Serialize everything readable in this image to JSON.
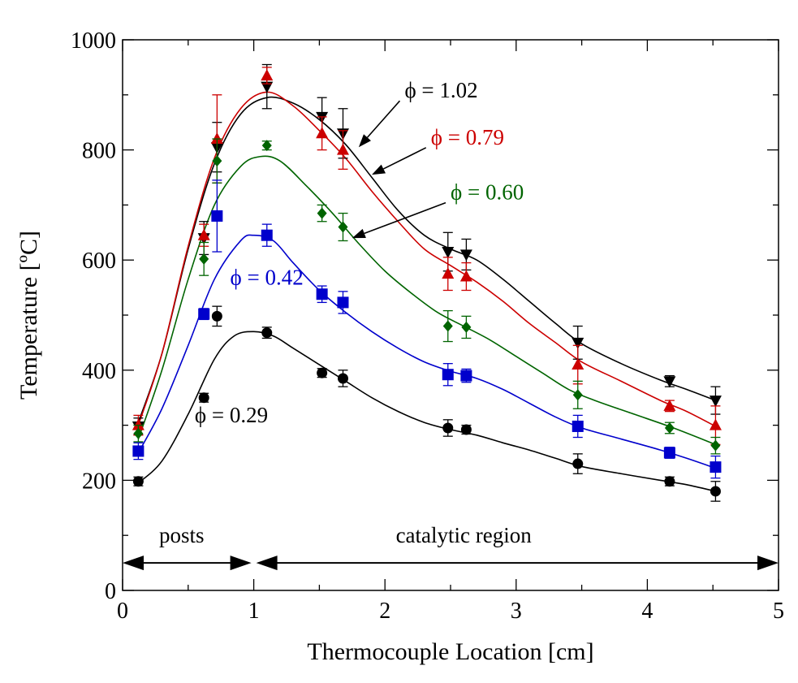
{
  "chart_data": {
    "type": "scatter",
    "xlabel": "Thermocouple Location [cm]",
    "ylabel": "Temperature [ºC]",
    "xlim": [
      0,
      5
    ],
    "ylim": [
      0,
      1000
    ],
    "xticks": [
      "0",
      "1",
      "2",
      "3",
      "4",
      "5"
    ],
    "yticks": [
      "0",
      "200",
      "400",
      "600",
      "800",
      "1000"
    ],
    "grid": false,
    "regions": [
      {
        "label": "posts",
        "from": 0,
        "to": 1.0,
        "y": 50
      },
      {
        "label": "catalytic region",
        "from": 1.0,
        "to": 5.0,
        "y": 50
      }
    ],
    "series": [
      {
        "name": "ϕ = 1.02",
        "color": "#000000",
        "marker": "triangle-down",
        "label_x": 2.15,
        "label_y": 895,
        "arrow_to": [
          1.8,
          805
        ],
        "x": [
          0.12,
          0.62,
          0.72,
          1.1,
          1.52,
          1.68,
          2.48,
          2.62,
          3.47,
          4.17,
          4.52
        ],
        "y": [
          298,
          640,
          805,
          915,
          860,
          830,
          615,
          610,
          450,
          380,
          345
        ],
        "err": [
          15,
          30,
          45,
          40,
          35,
          45,
          35,
          28,
          30,
          10,
          25
        ],
        "fit": [
          [
            0.12,
            305
          ],
          [
            0.3,
            430
          ],
          [
            0.5,
            620
          ],
          [
            0.7,
            775
          ],
          [
            0.9,
            865
          ],
          [
            1.1,
            895
          ],
          [
            1.3,
            885
          ],
          [
            1.5,
            855
          ],
          [
            1.7,
            810
          ],
          [
            1.9,
            750
          ],
          [
            2.1,
            690
          ],
          [
            2.3,
            645
          ],
          [
            2.5,
            620
          ],
          [
            2.7,
            600
          ],
          [
            2.9,
            565
          ],
          [
            3.1,
            525
          ],
          [
            3.3,
            485
          ],
          [
            3.5,
            448
          ],
          [
            3.8,
            412
          ],
          [
            4.1,
            382
          ],
          [
            4.3,
            365
          ],
          [
            4.52,
            345
          ]
        ]
      },
      {
        "name": "ϕ = 0.79",
        "color": "#cc0000",
        "marker": "triangle-up",
        "label_x": 2.35,
        "label_y": 810,
        "arrow_to": [
          1.9,
          755
        ],
        "x": [
          0.12,
          0.62,
          0.72,
          1.1,
          1.52,
          1.68,
          2.48,
          2.62,
          3.47,
          4.17,
          4.52
        ],
        "y": [
          300,
          645,
          820,
          935,
          830,
          800,
          575,
          570,
          410,
          335,
          300
        ],
        "err": [
          18,
          20,
          80,
          15,
          30,
          35,
          30,
          25,
          35,
          10,
          35
        ],
        "fit": [
          [
            0.12,
            300
          ],
          [
            0.3,
            430
          ],
          [
            0.5,
            625
          ],
          [
            0.7,
            785
          ],
          [
            0.9,
            875
          ],
          [
            1.1,
            905
          ],
          [
            1.3,
            880
          ],
          [
            1.5,
            835
          ],
          [
            1.7,
            785
          ],
          [
            1.9,
            725
          ],
          [
            2.1,
            670
          ],
          [
            2.3,
            620
          ],
          [
            2.5,
            590
          ],
          [
            2.7,
            560
          ],
          [
            2.9,
            525
          ],
          [
            3.1,
            485
          ],
          [
            3.3,
            450
          ],
          [
            3.5,
            415
          ],
          [
            3.8,
            380
          ],
          [
            4.1,
            345
          ],
          [
            4.3,
            325
          ],
          [
            4.52,
            298
          ]
        ]
      },
      {
        "name": "ϕ = 0.60",
        "color": "#006400",
        "marker": "diamond",
        "label_x": 2.5,
        "label_y": 710,
        "arrow_to": [
          1.75,
          640
        ],
        "x": [
          0.12,
          0.62,
          0.72,
          1.1,
          1.52,
          1.68,
          2.48,
          2.62,
          3.47,
          4.17,
          4.52
        ],
        "y": [
          285,
          602,
          780,
          808,
          685,
          660,
          480,
          478,
          355,
          295,
          263
        ],
        "err": [
          15,
          30,
          40,
          8,
          15,
          25,
          28,
          20,
          25,
          10,
          15
        ],
        "fit": [
          [
            0.12,
            275
          ],
          [
            0.3,
            400
          ],
          [
            0.5,
            565
          ],
          [
            0.7,
            700
          ],
          [
            0.9,
            770
          ],
          [
            1.05,
            788
          ],
          [
            1.2,
            780
          ],
          [
            1.4,
            735
          ],
          [
            1.6,
            685
          ],
          [
            1.8,
            630
          ],
          [
            2.0,
            580
          ],
          [
            2.2,
            540
          ],
          [
            2.4,
            505
          ],
          [
            2.6,
            480
          ],
          [
            2.8,
            455
          ],
          [
            3.0,
            425
          ],
          [
            3.2,
            395
          ],
          [
            3.4,
            365
          ],
          [
            3.6,
            345
          ],
          [
            3.9,
            320
          ],
          [
            4.2,
            295
          ],
          [
            4.52,
            265
          ]
        ]
      },
      {
        "name": "ϕ = 0.42",
        "color": "#0000cc",
        "marker": "square",
        "label_x": 0.82,
        "label_y": 555,
        "arrow_to": null,
        "x": [
          0.12,
          0.62,
          0.72,
          1.1,
          1.52,
          1.68,
          2.48,
          2.62,
          3.47,
          4.17,
          4.52
        ],
        "y": [
          253,
          502,
          680,
          645,
          538,
          523,
          392,
          390,
          298,
          250,
          224
        ],
        "err": [
          15,
          10,
          65,
          20,
          15,
          20,
          20,
          12,
          20,
          10,
          20
        ],
        "fit": [
          [
            0.12,
            250
          ],
          [
            0.3,
            330
          ],
          [
            0.5,
            445
          ],
          [
            0.7,
            565
          ],
          [
            0.9,
            635
          ],
          [
            1.0,
            645
          ],
          [
            1.15,
            635
          ],
          [
            1.3,
            595
          ],
          [
            1.5,
            545
          ],
          [
            1.7,
            505
          ],
          [
            1.9,
            470
          ],
          [
            2.1,
            440
          ],
          [
            2.3,
            415
          ],
          [
            2.5,
            398
          ],
          [
            2.7,
            385
          ],
          [
            2.9,
            365
          ],
          [
            3.1,
            340
          ],
          [
            3.3,
            315
          ],
          [
            3.5,
            295
          ],
          [
            3.8,
            275
          ],
          [
            4.1,
            255
          ],
          [
            4.3,
            240
          ],
          [
            4.52,
            222
          ]
        ]
      },
      {
        "name": "ϕ = 0.29",
        "color": "#000000",
        "marker": "circle",
        "label_x": 0.55,
        "label_y": 305,
        "arrow_to": null,
        "x": [
          0.12,
          0.62,
          0.72,
          1.1,
          1.52,
          1.68,
          2.48,
          2.62,
          3.47,
          4.17,
          4.52
        ],
        "y": [
          198,
          350,
          498,
          468,
          395,
          385,
          295,
          292,
          230,
          198,
          180
        ],
        "err": [
          8,
          8,
          18,
          10,
          8,
          15,
          15,
          8,
          18,
          8,
          18
        ],
        "fit": [
          [
            0.12,
            195
          ],
          [
            0.3,
            235
          ],
          [
            0.5,
            320
          ],
          [
            0.7,
            420
          ],
          [
            0.85,
            462
          ],
          [
            1.0,
            470
          ],
          [
            1.15,
            462
          ],
          [
            1.3,
            440
          ],
          [
            1.5,
            410
          ],
          [
            1.7,
            380
          ],
          [
            1.9,
            350
          ],
          [
            2.1,
            325
          ],
          [
            2.3,
            305
          ],
          [
            2.5,
            292
          ],
          [
            2.7,
            282
          ],
          [
            2.9,
            268
          ],
          [
            3.1,
            255
          ],
          [
            3.3,
            240
          ],
          [
            3.5,
            225
          ],
          [
            3.8,
            212
          ],
          [
            4.1,
            200
          ],
          [
            4.3,
            192
          ],
          [
            4.52,
            180
          ]
        ]
      }
    ]
  }
}
